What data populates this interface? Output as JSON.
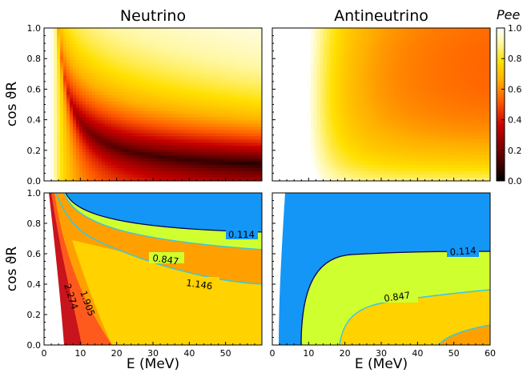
{
  "colors": {
    "cmap": [
      "#000000",
      "#6a0000",
      "#c80000",
      "#ff5a00",
      "#ffb000",
      "#ffe000",
      "#fff7a0",
      "#ffffff"
    ],
    "contour_fill": [
      "#ffffff",
      "#c8141c",
      "#ff5a1e",
      "#ffa000",
      "#ffd200",
      "#d0ff30",
      "#1496f6"
    ],
    "contour_line_dark": "#000050",
    "contour_line_light": "#33c8e6"
  },
  "chart_data": [
    {
      "type": "heatmap",
      "title": "Neutrino",
      "xlabel": "",
      "ylabel": "cos ϑR",
      "xlim": [
        0,
        60
      ],
      "ylim": [
        0,
        1
      ],
      "yticks": [
        "0.0",
        "0.2",
        "0.4",
        "0.6",
        "0.8",
        "1.0"
      ],
      "xticks": [],
      "colorbar": {
        "label": "Pee",
        "ticks": [
          "0.0",
          "0.2",
          "0.4",
          "0.6",
          "0.8",
          "1.0"
        ],
        "range": [
          0,
          1
        ]
      }
    },
    {
      "type": "heatmap",
      "title": "Antineutrino",
      "xlabel": "",
      "ylabel": "",
      "xlim": [
        0,
        60
      ],
      "ylim": [
        0,
        1
      ],
      "yticks": [],
      "xticks": []
    },
    {
      "type": "contour",
      "title": "",
      "xlabel": "E (MeV)",
      "ylabel": "cos ϑR",
      "xlim": [
        0,
        60
      ],
      "ylim": [
        0,
        1
      ],
      "xticks": [
        "0",
        "10",
        "20",
        "30",
        "40",
        "50"
      ],
      "yticks": [
        "0.0",
        "0.2",
        "0.4",
        "0.6",
        "0.8",
        "1.0"
      ],
      "contour_levels": [
        "0.114",
        "0.847",
        "1.146",
        "1.905",
        "2.274"
      ]
    },
    {
      "type": "contour",
      "title": "",
      "xlabel": "E (MeV)",
      "ylabel": "",
      "xlim": [
        0,
        60
      ],
      "ylim": [
        0,
        1
      ],
      "xticks": [
        "0",
        "10",
        "20",
        "30",
        "40",
        "50",
        "60"
      ],
      "yticks": [],
      "contour_levels": [
        "0.114",
        "0.847"
      ]
    }
  ],
  "labels": {
    "title_left": "Neutrino",
    "title_right": "Antineutrino",
    "ylabel_top": "cos ϑR",
    "ylabel_bottom": "cos ϑR",
    "xlabel_left": "E (MeV)",
    "xlabel_right": "E (MeV)",
    "colorbar_label": "Pee",
    "contour_nu": [
      "0.114",
      "0.847",
      "1.146",
      "1.905",
      "2.274"
    ],
    "contour_anu": [
      "0.114",
      "0.847"
    ]
  }
}
